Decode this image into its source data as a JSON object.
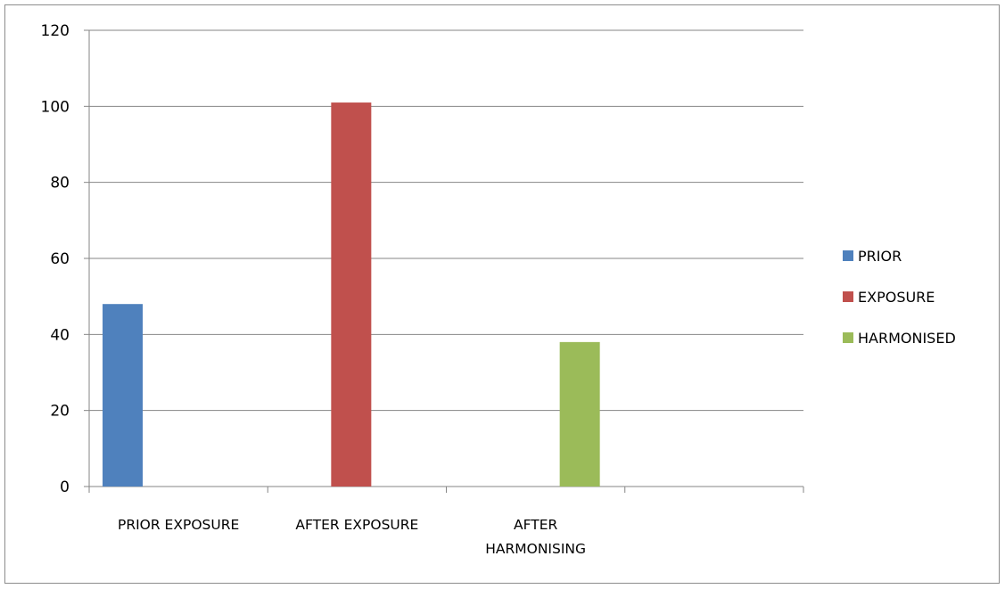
{
  "chart_data": {
    "type": "bar",
    "categories": [
      [
        "PRIOR EXPOSURE"
      ],
      [
        "AFTER EXPOSURE"
      ],
      [
        "AFTER",
        "HARMONISING"
      ],
      [
        ""
      ]
    ],
    "series": [
      {
        "name": "PRIOR",
        "color": "#4f81bd",
        "values": [
          48,
          null,
          null,
          null
        ]
      },
      {
        "name": "EXPOSURE",
        "color": "#c0504d",
        "values": [
          null,
          101,
          null,
          null
        ]
      },
      {
        "name": "HARMONISED",
        "color": "#9bbb59",
        "values": [
          null,
          null,
          38,
          null
        ]
      }
    ],
    "ylim": [
      0,
      120
    ],
    "yticks": [
      "0",
      "20",
      "40",
      "60",
      "80",
      "100",
      "120"
    ],
    "grid": true,
    "legend_position": "right",
    "title": "",
    "xlabel": "",
    "ylabel": ""
  }
}
